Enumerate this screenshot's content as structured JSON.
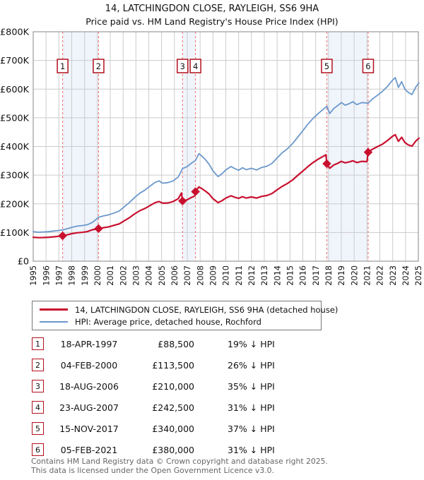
{
  "title": {
    "line1": "14, LATCHINGDON CLOSE, RAYLEIGH, SS6 9HA",
    "line2": "Price paid vs. HM Land Registry's House Price Index (HPI)"
  },
  "legend": {
    "items": [
      {
        "label": "14, LATCHINGDON CLOSE, RAYLEIGH, SS6 9HA (detached house)",
        "color": "#c8102e"
      },
      {
        "label": "HPI: Average price, detached house, Rochford",
        "color": "#6b98cc"
      }
    ]
  },
  "sales": [
    {
      "num": "1",
      "date": "18-APR-1997",
      "year": 1997.29,
      "price": 88500,
      "price_label": "£88,500",
      "hpi_diff": "19% ↓ HPI"
    },
    {
      "num": "2",
      "date": "04-FEB-2000",
      "year": 2000.09,
      "price": 113500,
      "price_label": "£113,500",
      "hpi_diff": "26% ↓ HPI"
    },
    {
      "num": "3",
      "date": "18-AUG-2006",
      "year": 2006.63,
      "price": 210000,
      "price_label": "£210,000",
      "hpi_diff": "35% ↓ HPI"
    },
    {
      "num": "4",
      "date": "23-AUG-2007",
      "year": 2007.64,
      "price": 242500,
      "price_label": "£242,500",
      "hpi_diff": "31% ↓ HPI"
    },
    {
      "num": "5",
      "date": "15-NOV-2017",
      "year": 2017.87,
      "price": 340000,
      "price_label": "£340,000",
      "hpi_diff": "37% ↓ HPI"
    },
    {
      "num": "6",
      "date": "05-FEB-2021",
      "year": 2021.09,
      "price": 380000,
      "price_label": "£380,000",
      "hpi_diff": "31% ↓ HPI"
    }
  ],
  "footer": {
    "line1": "Contains HM Land Registry data © Crown copyright and database right 2025.",
    "line2": "This data is licensed under the Open Government Licence v3.0."
  },
  "chart_data": {
    "type": "line",
    "title": "14, LATCHINGDON CLOSE, RAYLEIGH, SS6 9HA — Price paid vs. HPI",
    "y_unit": "GBP_thousands",
    "ylim": [
      0,
      800
    ],
    "xlim": [
      1995,
      2025
    ],
    "y_ticks": [
      "£0",
      "£100K",
      "£200K",
      "£300K",
      "£400K",
      "£500K",
      "£600K",
      "£700K",
      "£800K"
    ],
    "x_ticks": [
      "1995",
      "1996",
      "1997",
      "1998",
      "1999",
      "2000",
      "2001",
      "2002",
      "2003",
      "2004",
      "2005",
      "2006",
      "2007",
      "2008",
      "2009",
      "2010",
      "2011",
      "2012",
      "2013",
      "2014",
      "2015",
      "2016",
      "2017",
      "2018",
      "2019",
      "2020",
      "2021",
      "2022",
      "2023",
      "2024",
      "2025"
    ],
    "grid": true,
    "legend_position": "below",
    "bands": [
      [
        1997.29,
        2000.09
      ],
      [
        2006.63,
        2007.64
      ],
      [
        2017.87,
        2021.09
      ]
    ],
    "series": [
      {
        "name": "HPI: Average price, detached house, Rochford",
        "color": "#6b98cc",
        "width": 1.8,
        "points": [
          [
            1995.0,
            103
          ],
          [
            1995.4,
            101
          ],
          [
            1995.8,
            102
          ],
          [
            1996.2,
            103
          ],
          [
            1996.6,
            105
          ],
          [
            1997.0,
            107
          ],
          [
            1997.29,
            109
          ],
          [
            1997.7,
            114
          ],
          [
            1998.0,
            118
          ],
          [
            1998.4,
            122
          ],
          [
            1998.8,
            124
          ],
          [
            1999.2,
            127
          ],
          [
            1999.6,
            135
          ],
          [
            2000.09,
            153
          ],
          [
            2000.5,
            158
          ],
          [
            2000.9,
            162
          ],
          [
            2001.3,
            168
          ],
          [
            2001.7,
            175
          ],
          [
            2002.1,
            190
          ],
          [
            2002.5,
            205
          ],
          [
            2002.9,
            222
          ],
          [
            2003.3,
            237
          ],
          [
            2003.7,
            248
          ],
          [
            2004.1,
            262
          ],
          [
            2004.5,
            275
          ],
          [
            2004.8,
            280
          ],
          [
            2005.1,
            272
          ],
          [
            2005.5,
            274
          ],
          [
            2005.9,
            280
          ],
          [
            2006.3,
            294
          ],
          [
            2006.63,
            323
          ],
          [
            2007.0,
            330
          ],
          [
            2007.3,
            341
          ],
          [
            2007.64,
            351
          ],
          [
            2007.9,
            375
          ],
          [
            2008.1,
            368
          ],
          [
            2008.4,
            355
          ],
          [
            2008.7,
            338
          ],
          [
            2009.0,
            315
          ],
          [
            2009.4,
            295
          ],
          [
            2009.7,
            305
          ],
          [
            2010.0,
            318
          ],
          [
            2010.4,
            330
          ],
          [
            2010.7,
            323
          ],
          [
            2011.0,
            317
          ],
          [
            2011.3,
            326
          ],
          [
            2011.6,
            319
          ],
          [
            2012.0,
            324
          ],
          [
            2012.4,
            318
          ],
          [
            2012.8,
            327
          ],
          [
            2013.2,
            331
          ],
          [
            2013.6,
            341
          ],
          [
            2014.0,
            360
          ],
          [
            2014.4,
            378
          ],
          [
            2014.8,
            392
          ],
          [
            2015.2,
            410
          ],
          [
            2015.6,
            432
          ],
          [
            2016.0,
            455
          ],
          [
            2016.4,
            478
          ],
          [
            2016.8,
            498
          ],
          [
            2017.2,
            515
          ],
          [
            2017.6,
            530
          ],
          [
            2017.87,
            540
          ],
          [
            2018.1,
            515
          ],
          [
            2018.4,
            532
          ],
          [
            2018.7,
            542
          ],
          [
            2019.0,
            553
          ],
          [
            2019.3,
            544
          ],
          [
            2019.6,
            549
          ],
          [
            2019.9,
            556
          ],
          [
            2020.2,
            546
          ],
          [
            2020.6,
            553
          ],
          [
            2021.09,
            551
          ],
          [
            2021.4,
            565
          ],
          [
            2021.8,
            578
          ],
          [
            2022.2,
            592
          ],
          [
            2022.6,
            610
          ],
          [
            2023.0,
            632
          ],
          [
            2023.2,
            640
          ],
          [
            2023.45,
            606
          ],
          [
            2023.7,
            626
          ],
          [
            2023.95,
            600
          ],
          [
            2024.2,
            589
          ],
          [
            2024.5,
            581
          ],
          [
            2024.8,
            607
          ],
          [
            2025.05,
            622
          ]
        ]
      },
      {
        "name": "14, LATCHINGDON CLOSE, RAYLEIGH, SS6 9HA (detached house)",
        "color": "#c8102e",
        "width": 2.2,
        "points": [
          [
            1995.0,
            83.5
          ],
          [
            1995.4,
            82
          ],
          [
            1995.8,
            82.5
          ],
          [
            1996.2,
            83.5
          ],
          [
            1996.6,
            85
          ],
          [
            1997.0,
            87
          ],
          [
            1997.29,
            88.5
          ],
          [
            1997.7,
            92.5
          ],
          [
            1998.0,
            96
          ],
          [
            1998.4,
            99
          ],
          [
            1998.8,
            100.5
          ],
          [
            1999.2,
            103
          ],
          [
            1999.6,
            109.5
          ],
          [
            2000.09,
            113.5
          ],
          [
            2000.5,
            117
          ],
          [
            2000.9,
            120
          ],
          [
            2001.3,
            125
          ],
          [
            2001.7,
            130
          ],
          [
            2002.1,
            141
          ],
          [
            2002.5,
            152
          ],
          [
            2002.9,
            165
          ],
          [
            2003.3,
            176
          ],
          [
            2003.7,
            184
          ],
          [
            2004.1,
            194
          ],
          [
            2004.5,
            204
          ],
          [
            2004.8,
            208
          ],
          [
            2005.1,
            202
          ],
          [
            2005.5,
            203
          ],
          [
            2005.9,
            208
          ],
          [
            2006.3,
            218
          ],
          [
            2006.55,
            238
          ],
          [
            2006.63,
            210
          ],
          [
            2007.0,
            214.5
          ],
          [
            2007.3,
            221.5
          ],
          [
            2007.6,
            228
          ],
          [
            2007.64,
            242.5
          ],
          [
            2007.9,
            259
          ],
          [
            2008.1,
            254
          ],
          [
            2008.4,
            245
          ],
          [
            2008.7,
            234
          ],
          [
            2009.0,
            218
          ],
          [
            2009.4,
            204
          ],
          [
            2009.7,
            211
          ],
          [
            2010.0,
            220
          ],
          [
            2010.4,
            228
          ],
          [
            2010.7,
            223
          ],
          [
            2011.0,
            219
          ],
          [
            2011.3,
            225
          ],
          [
            2011.6,
            220
          ],
          [
            2012.0,
            224
          ],
          [
            2012.4,
            220
          ],
          [
            2012.8,
            226
          ],
          [
            2013.2,
            229
          ],
          [
            2013.6,
            236
          ],
          [
            2014.0,
            249
          ],
          [
            2014.4,
            261
          ],
          [
            2014.8,
            271
          ],
          [
            2015.2,
            283
          ],
          [
            2015.6,
            299
          ],
          [
            2016.0,
            314
          ],
          [
            2016.4,
            330
          ],
          [
            2016.8,
            344
          ],
          [
            2017.2,
            356
          ],
          [
            2017.6,
            366
          ],
          [
            2017.8,
            371
          ],
          [
            2017.87,
            340
          ],
          [
            2018.1,
            324
          ],
          [
            2018.4,
            335
          ],
          [
            2018.7,
            341
          ],
          [
            2019.0,
            348
          ],
          [
            2019.3,
            343
          ],
          [
            2019.6,
            346
          ],
          [
            2019.9,
            350
          ],
          [
            2020.2,
            344
          ],
          [
            2020.6,
            348
          ],
          [
            2021.0,
            347
          ],
          [
            2021.09,
            380
          ],
          [
            2021.4,
            390
          ],
          [
            2021.8,
            399
          ],
          [
            2022.2,
            408
          ],
          [
            2022.6,
            421
          ],
          [
            2023.0,
            436
          ],
          [
            2023.2,
            441
          ],
          [
            2023.45,
            418
          ],
          [
            2023.7,
            432
          ],
          [
            2023.95,
            414
          ],
          [
            2024.2,
            406
          ],
          [
            2024.5,
            401
          ],
          [
            2024.8,
            419
          ],
          [
            2025.05,
            429
          ]
        ]
      }
    ],
    "sale_markers": [
      [
        1997.29,
        88.5
      ],
      [
        2000.09,
        113.5
      ],
      [
        2006.63,
        210
      ],
      [
        2007.64,
        242.5
      ],
      [
        2017.87,
        340
      ],
      [
        2021.09,
        380
      ]
    ]
  },
  "colors": {
    "grid": "#cccccc",
    "frame": "#9a9a9a",
    "band": "#f0f4fb",
    "dashed_line": "#f08080",
    "marker_box_border": "#b3111e",
    "axis_text": "#111111",
    "hpi_line": "#6b98cc",
    "price_line": "#c8102e"
  }
}
